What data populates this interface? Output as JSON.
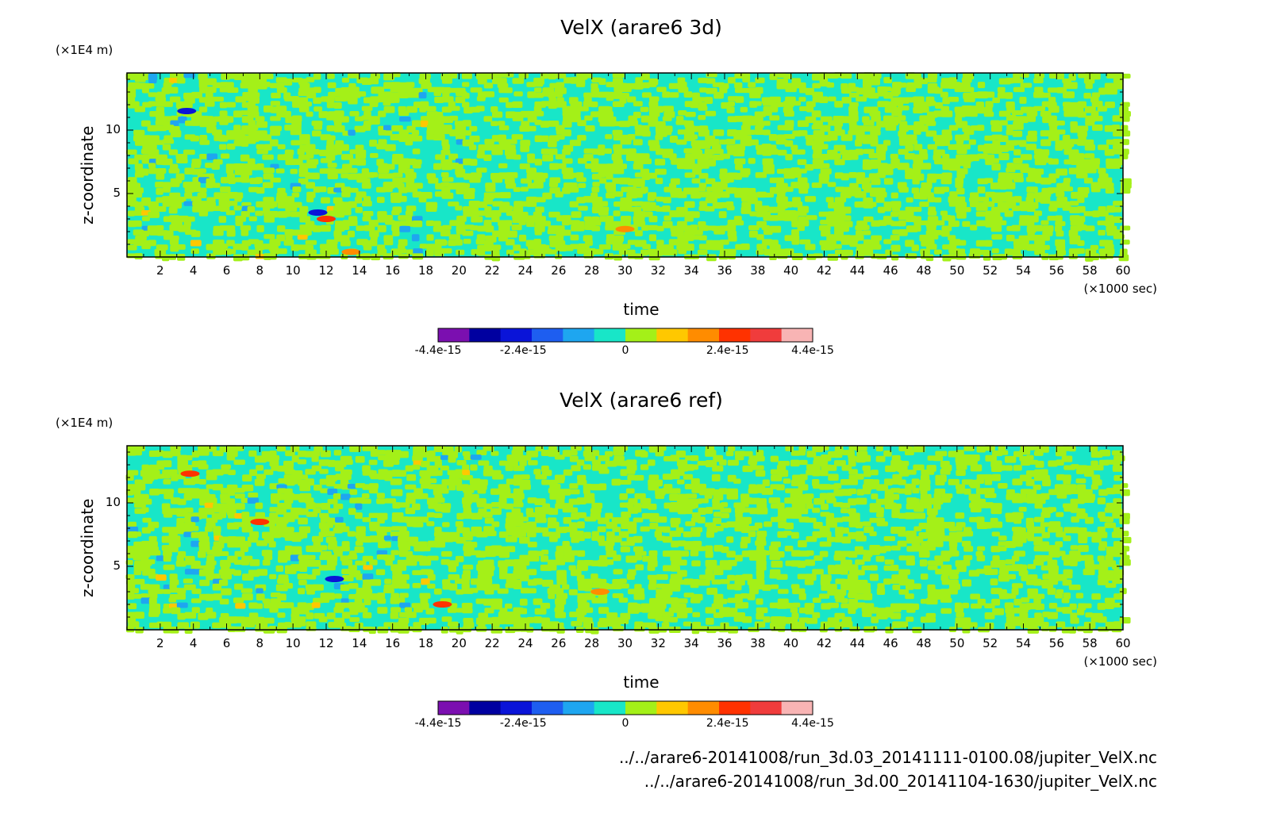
{
  "chart_data": [
    {
      "type": "heatmap",
      "title": "VelX (arare6 3d)",
      "ylabel": "z-coordinate",
      "xlabel": "time",
      "x_units": "(×1000 sec)",
      "y_units": "(×1E4 m)",
      "xlim": [
        0,
        60
      ],
      "ylim": [
        0,
        14.5
      ],
      "x_ticks": [
        2,
        4,
        6,
        8,
        10,
        12,
        14,
        16,
        18,
        20,
        22,
        24,
        26,
        28,
        30,
        32,
        34,
        36,
        38,
        40,
        42,
        44,
        46,
        48,
        50,
        52,
        54,
        56,
        58,
        60
      ],
      "y_ticks": [
        5,
        10
      ],
      "colorbar": {
        "min": -4.4e-15,
        "max": 4.4e-15,
        "tick_labels": [
          "-4.4e-15",
          "-2.4e-15",
          "0",
          "2.4e-15",
          "4.4e-15"
        ],
        "tick_values": [
          -4.4e-15,
          -2.4e-15,
          0,
          2.4e-15,
          4.4e-15
        ],
        "colors": [
          "#7b0fb0",
          "#0000a0",
          "#0a14d8",
          "#1e5ef0",
          "#1ea6f0",
          "#18e6c8",
          "#a4f018",
          "#ffc800",
          "#ff8c00",
          "#ff3200",
          "#f03c3c",
          "#f8b4b4"
        ]
      }
    },
    {
      "type": "heatmap",
      "title": "VelX (arare6 ref)",
      "ylabel": "z-coordinate",
      "xlabel": "time",
      "x_units": "(×1000 sec)",
      "y_units": "(×1E4 m)",
      "xlim": [
        0,
        60
      ],
      "ylim": [
        0,
        14.5
      ],
      "x_ticks": [
        2,
        4,
        6,
        8,
        10,
        12,
        14,
        16,
        18,
        20,
        22,
        24,
        26,
        28,
        30,
        32,
        34,
        36,
        38,
        40,
        42,
        44,
        46,
        48,
        50,
        52,
        54,
        56,
        58,
        60
      ],
      "y_ticks": [
        5,
        10
      ],
      "colorbar": {
        "min": -4.4e-15,
        "max": 4.4e-15,
        "tick_labels": [
          "-4.4e-15",
          "-2.4e-15",
          "0",
          "2.4e-15",
          "4.4e-15"
        ],
        "tick_values": [
          -4.4e-15,
          -2.4e-15,
          0,
          2.4e-15,
          4.4e-15
        ],
        "colors": [
          "#7b0fb0",
          "#0000a0",
          "#0a14d8",
          "#1e5ef0",
          "#1ea6f0",
          "#18e6c8",
          "#a4f018",
          "#ffc800",
          "#ff8c00",
          "#ff3200",
          "#f03c3c",
          "#f8b4b4"
        ]
      }
    }
  ],
  "footer": {
    "paths": [
      "../../arare6-20141008/run_3d.03_20141111-0100.08/jupiter_VelX.nc",
      "../../arare6-20141008/run_3d.00_20141104-1630/jupiter_VelX.nc"
    ]
  }
}
